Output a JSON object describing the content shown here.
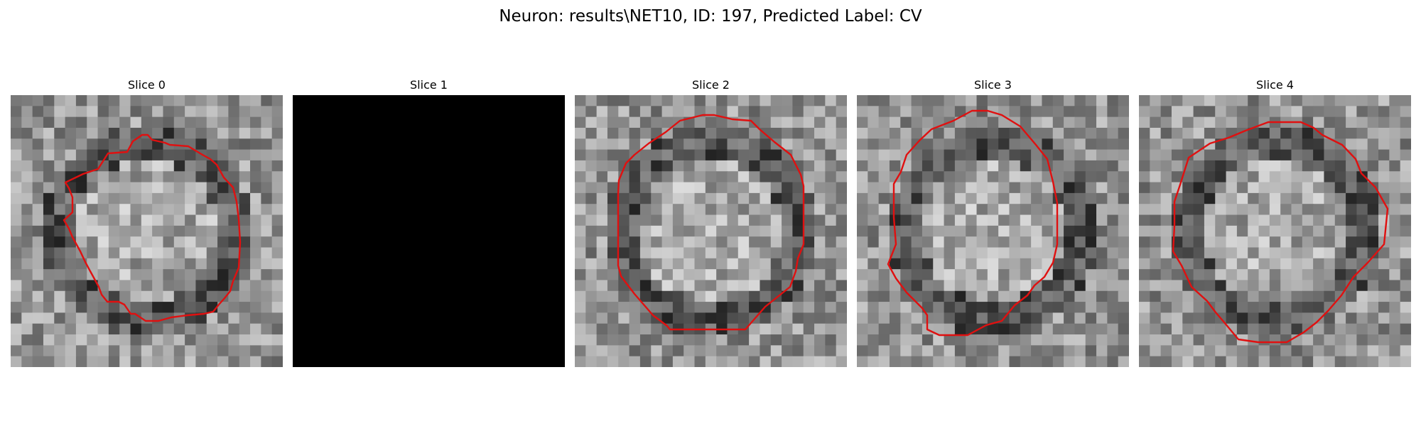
{
  "figure": {
    "title": "Neuron: results\\NET10, ID: 197, Predicted Label: CV"
  },
  "panels": [
    {
      "title": "Slice 0",
      "seed": 11,
      "blank": false
    },
    {
      "title": "Slice 1",
      "seed": 23,
      "blank": true
    },
    {
      "title": "Slice 2",
      "seed": 37,
      "blank": false
    },
    {
      "title": "Slice 3",
      "seed": 53,
      "blank": false
    },
    {
      "title": "Slice 4",
      "seed": 71,
      "blank": false
    }
  ],
  "colors": {
    "contour": "#e01010",
    "background": "#ffffff",
    "blank_slice": "#000000"
  }
}
